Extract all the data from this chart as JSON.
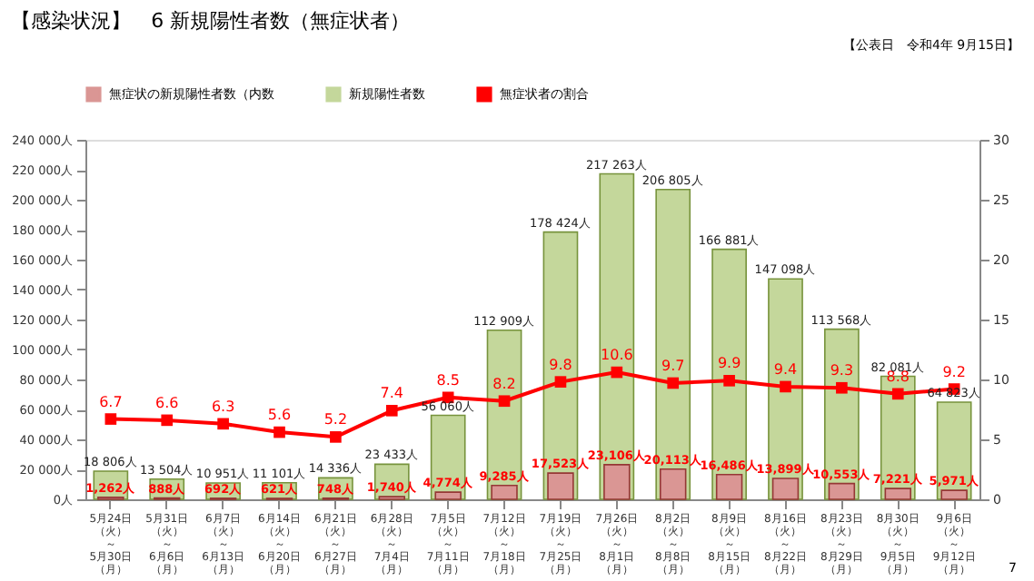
{
  "chart_data": {
    "type": "bar",
    "title": "【感染状況】　6 新規陽性者数（無症状者）",
    "annotations": [
      "【公表日　令和4年 9月15日】",
      "7"
    ],
    "categories": [
      "5月24日（火）～5月30日（月）",
      "5月31日（火）～6月6日（月）",
      "6月7日（火）～6月13日（月）",
      "6月14日（火）～6月20日（月）",
      "6月21日（火）～6月27日（月）",
      "6月28日（火）～7月4日（月）",
      "7月5日（火）～7月11日（月）",
      "7月12日（火）～7月18日（月）",
      "7月19日（火）～7月25日（月）",
      "7月26日（火）～8月1日（月）",
      "8月2日（火）～8月8日（月）",
      "8月9日（火）～8月15日（月）",
      "8月16日（火）～8月22日（月）",
      "8月23日（火）～8月29日（月）",
      "8月30日（火）～9月5日（月）",
      "9月6日（火）～9月12日（月）"
    ],
    "series": [
      {
        "name": "無症状の新規陽性者数（内数",
        "color": "#da9694",
        "values": [
          1262,
          888,
          692,
          621,
          748,
          1740,
          4774,
          9285,
          17523,
          23106,
          20113,
          16486,
          13899,
          10553,
          7221,
          5971
        ],
        "value_labels": [
          "1,262人",
          "888人",
          "692人",
          "621人",
          "748人",
          "1,740人",
          "4,774人",
          "9,285人",
          "17,523人",
          "23,106人",
          "20,113人",
          "16,486人",
          "13,899人",
          "10,553人",
          "7,221人",
          "5,971人"
        ]
      },
      {
        "name": "新規陽性者数",
        "color": "#c4d79b",
        "values": [
          18806,
          13504,
          10951,
          11101,
          14336,
          23433,
          56060,
          112909,
          178424,
          217263,
          206805,
          166881,
          147098,
          113568,
          82081,
          64823
        ],
        "value_labels": [
          "18 806人",
          "13 504人",
          "10 951人",
          "11 101人",
          "14 336人",
          "23 433人",
          "56 060人",
          "112 909人",
          "178 424人",
          "217 263人",
          "206 805人",
          "166 881人",
          "147 098人",
          "113 568人",
          "82 081人",
          "64 823人"
        ]
      },
      {
        "name": "無症状者の割合",
        "type": "line",
        "axis": "y2",
        "color": "#ff0000",
        "values": [
          6.7,
          6.6,
          6.3,
          5.6,
          5.2,
          7.4,
          8.5,
          8.2,
          9.8,
          10.6,
          9.7,
          9.9,
          9.4,
          9.3,
          8.8,
          9.2
        ],
        "value_labels": [
          "6.7",
          "6.6",
          "6.3",
          "5.6",
          "5.2",
          "7.4",
          "8.5",
          "8.2",
          "9.8",
          "10.6",
          "9.7",
          "9.9",
          "9.4",
          "9.3",
          "8.8",
          "9.2"
        ]
      }
    ],
    "ylim": [
      0,
      240000
    ],
    "yticks": [
      {
        "value": 0,
        "label": "0人"
      },
      {
        "value": 20000,
        "label": "20 000人"
      },
      {
        "value": 40000,
        "label": "40 000人"
      },
      {
        "value": 60000,
        "label": "60 000人"
      },
      {
        "value": 80000,
        "label": "80 000人"
      },
      {
        "value": 100000,
        "label": "100 000人"
      },
      {
        "value": 120000,
        "label": "120 000人"
      },
      {
        "value": 140000,
        "label": "140 000人"
      },
      {
        "value": 160000,
        "label": "160 000人"
      },
      {
        "value": 180000,
        "label": "180 000人"
      },
      {
        "value": 200000,
        "label": "200 000人"
      },
      {
        "value": 220000,
        "label": "220 000人"
      },
      {
        "value": 240000,
        "label": "240 000人"
      }
    ],
    "y2lim": [
      0,
      30
    ],
    "y2ticks": [
      0,
      5,
      10,
      15,
      20,
      25,
      30
    ],
    "legend": "top",
    "marker": "square",
    "grid": false
  }
}
